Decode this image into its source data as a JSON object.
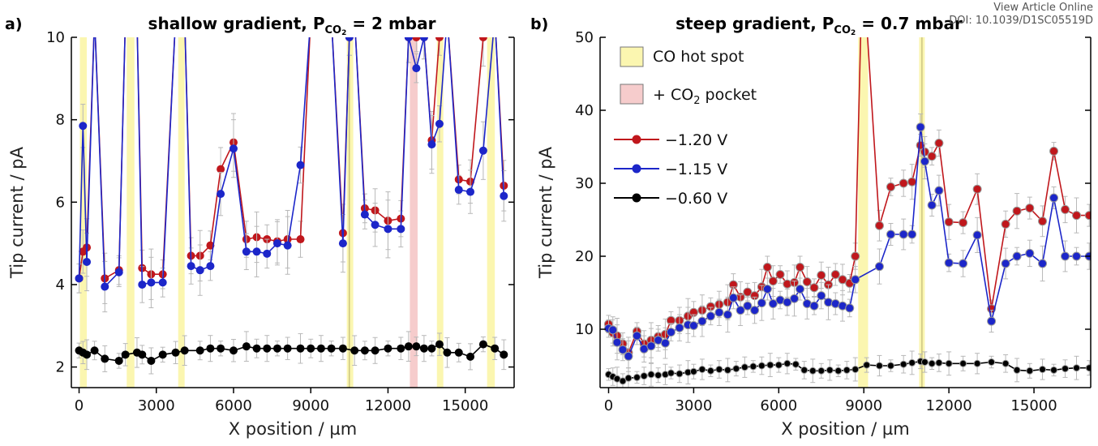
{
  "watermark": {
    "line1": "View Article Online",
    "line2": "DOI: 10.1039/D1SC05519D"
  },
  "chart_data": [
    {
      "type": "line",
      "panel": "a)",
      "title": "shallow gradient, P",
      "title_sub": "CO",
      "title_subsub": "2",
      "title_tail": " = 2 mbar",
      "xlabel": "X position / µm",
      "ylabel": "Tip current / pA",
      "xlim": [
        -300,
        16900
      ],
      "ylim": [
        1.5,
        10
      ],
      "xticks": [
        0,
        3000,
        6000,
        9000,
        12000,
        15000
      ],
      "yticks": [
        2,
        4,
        6,
        8,
        10
      ],
      "colors": {
        "-1.20 V": "#c0171c",
        "-1.15 V": "#1c26c9",
        "-0.60 V": "#000000",
        "hotspot": "#fbf6b0",
        "pocket": "#f6cccc"
      },
      "hotspots": [
        [
          30,
          300
        ],
        [
          1850,
          2150
        ],
        [
          3850,
          4100
        ],
        [
          10400,
          10650
        ],
        [
          13900,
          14150
        ],
        [
          15850,
          16150
        ]
      ],
      "pockets": [
        [
          12850,
          13150
        ]
      ],
      "hotspot_lines": [
        10500
      ],
      "series": [
        {
          "name": "-1.20 V",
          "x": [
            0,
            150,
            300,
            600,
            1000,
            1550,
            1800,
            2250,
            2450,
            2800,
            3250,
            3750,
            4100,
            4350,
            4700,
            5100,
            5500,
            6000,
            6500,
            6900,
            7300,
            7700,
            8100,
            8600,
            9000,
            9400,
            9800,
            10250,
            10500,
            10700,
            11100,
            11500,
            12000,
            12500,
            12800,
            13100,
            13400,
            13700,
            14000,
            14300,
            14750,
            15200,
            15700,
            16150,
            16500
          ],
          "y": [
            4.15,
            4.8,
            4.9,
            10.5,
            4.15,
            4.35,
            10.5,
            10.5,
            4.4,
            4.25,
            4.25,
            10.5,
            10.5,
            4.7,
            4.7,
            4.95,
            6.8,
            7.45,
            5.1,
            5.15,
            5.1,
            5.05,
            5.1,
            5.1,
            10.5,
            10.5,
            10.5,
            5.25,
            10.0,
            10.5,
            5.85,
            5.8,
            5.55,
            5.6,
            10.0,
            10.0,
            10.0,
            7.5,
            10.0,
            10.5,
            6.55,
            6.5,
            10.0,
            10.5,
            6.4
          ]
        },
        {
          "name": "-1.15 V",
          "x": [
            0,
            150,
            300,
            600,
            1000,
            1550,
            1800,
            2250,
            2450,
            2800,
            3250,
            3750,
            4100,
            4350,
            4700,
            5100,
            5500,
            6000,
            6500,
            6900,
            7300,
            7700,
            8100,
            8600,
            9000,
            9400,
            9800,
            10250,
            10500,
            10700,
            11100,
            11500,
            12000,
            12500,
            12800,
            13100,
            13400,
            13700,
            14000,
            14300,
            14750,
            15200,
            15700,
            16150,
            16500
          ],
          "y": [
            4.15,
            7.85,
            4.55,
            10.5,
            3.95,
            4.3,
            10.5,
            10.5,
            4.0,
            4.05,
            4.05,
            10.5,
            10.5,
            4.45,
            4.35,
            4.45,
            6.2,
            7.3,
            4.8,
            4.8,
            4.75,
            5.0,
            4.95,
            6.9,
            10.5,
            10.5,
            10.5,
            5.0,
            10.0,
            10.5,
            5.7,
            5.45,
            5.35,
            5.35,
            10.0,
            9.25,
            10.0,
            7.4,
            7.9,
            10.5,
            6.3,
            6.25,
            7.25,
            10.5,
            6.15
          ]
        },
        {
          "name": "-0.60 V",
          "x": [
            0,
            150,
            300,
            600,
            1000,
            1550,
            1800,
            2250,
            2450,
            2800,
            3250,
            3750,
            4100,
            4700,
            5100,
            5500,
            6000,
            6500,
            6900,
            7300,
            7700,
            8100,
            8600,
            9000,
            9400,
            9800,
            10250,
            10700,
            11100,
            11500,
            12000,
            12500,
            12800,
            13100,
            13400,
            13700,
            14000,
            14300,
            14750,
            15200,
            15700,
            16150,
            16500
          ],
          "y": [
            2.4,
            2.35,
            2.3,
            2.4,
            2.2,
            2.15,
            2.3,
            2.35,
            2.3,
            2.15,
            2.3,
            2.35,
            2.4,
            2.4,
            2.45,
            2.45,
            2.4,
            2.5,
            2.45,
            2.45,
            2.45,
            2.45,
            2.45,
            2.45,
            2.45,
            2.45,
            2.45,
            2.4,
            2.4,
            2.4,
            2.45,
            2.45,
            2.5,
            2.5,
            2.45,
            2.45,
            2.55,
            2.35,
            2.35,
            2.25,
            2.55,
            2.45,
            2.3
          ]
        }
      ]
    },
    {
      "type": "line",
      "panel": "b)",
      "title": "steep gradient, P",
      "title_sub": "CO",
      "title_subsub": "2",
      "title_tail": " = 0.7 mbar",
      "xlabel": "X position / µm",
      "ylabel": "Tip current / pA",
      "xlim": [
        -300,
        17000
      ],
      "ylim": [
        2,
        50
      ],
      "xticks": [
        0,
        3000,
        6000,
        9000,
        12000,
        15000
      ],
      "yticks": [
        10,
        20,
        30,
        40,
        50
      ],
      "legend": {
        "position": "top-left",
        "hotspot": "CO hot spot",
        "pocket_prefix": "+ CO",
        "pocket_sub": "2",
        "pocket_suffix": " pocket",
        "s1": "−1.20 V",
        "s2": "−1.15 V",
        "s3": "−0.60 V"
      },
      "hotspots": [
        [
          8800,
          9150
        ],
        [
          10950,
          11150
        ]
      ],
      "hotspot_lines": [
        11050
      ],
      "series": [
        {
          "name": "-1.20 V",
          "x": [
            0,
            150,
            300,
            500,
            700,
            1000,
            1250,
            1500,
            1750,
            2000,
            2200,
            2500,
            2800,
            3000,
            3300,
            3600,
            3900,
            4200,
            4400,
            4650,
            4900,
            5150,
            5400,
            5600,
            5800,
            6050,
            6300,
            6550,
            6750,
            7000,
            7250,
            7500,
            7750,
            8000,
            8250,
            8500,
            8700,
            8900,
            9100,
            9550,
            9950,
            10400,
            10700,
            11000,
            11150,
            11400,
            11650,
            12000,
            12500,
            13000,
            13500,
            14000,
            14400,
            14850,
            15300,
            15700,
            16100,
            16500,
            16950
          ],
          "y": [
            10.7,
            9.5,
            9.1,
            8.0,
            6.8,
            9.7,
            8.0,
            8.5,
            9.0,
            9.3,
            11.2,
            11.2,
            11.8,
            12.3,
            12.6,
            13.1,
            13.4,
            13.7,
            16.1,
            14.4,
            15.1,
            14.6,
            15.8,
            18.5,
            16.6,
            17.5,
            16.2,
            16.4,
            18.5,
            16.5,
            15.7,
            17.4,
            16.1,
            17.5,
            16.8,
            16.3,
            20,
            52,
            52,
            24.2,
            29.5,
            30,
            30.2,
            35.2,
            34.3,
            33.7,
            35.5,
            24.7,
            24.6,
            29.2,
            12.8,
            24.4,
            26.2,
            26.6,
            24.8,
            34.4,
            26.4,
            25.6,
            25.6
          ]
        },
        {
          "name": "-1.15 V",
          "x": [
            0,
            150,
            300,
            500,
            700,
            1000,
            1250,
            1500,
            1750,
            2000,
            2200,
            2500,
            2800,
            3000,
            3300,
            3600,
            3900,
            4200,
            4400,
            4650,
            4900,
            5150,
            5400,
            5600,
            5800,
            6050,
            6300,
            6550,
            6750,
            7000,
            7250,
            7500,
            7750,
            8000,
            8250,
            8500,
            8700,
            9550,
            9950,
            10400,
            10700,
            11000,
            11150,
            11400,
            11650,
            12000,
            12500,
            13000,
            13500,
            14000,
            14400,
            14850,
            15300,
            15700,
            16100,
            16500,
            16950
          ],
          "y": [
            10.1,
            9.9,
            8.2,
            7.2,
            6.3,
            9.1,
            7.3,
            7.7,
            8.5,
            8.1,
            9.6,
            10.2,
            10.6,
            10.5,
            11.1,
            11.8,
            12.3,
            12.0,
            14.3,
            12.6,
            13.2,
            12.6,
            13.6,
            15.5,
            13.5,
            14.0,
            13.7,
            14.2,
            15.5,
            13.5,
            13.2,
            14.6,
            13.7,
            13.5,
            13.2,
            12.9,
            16.8,
            18.6,
            23,
            23,
            23,
            37.7,
            33,
            27,
            29,
            19.1,
            19.0,
            22.9,
            11.1,
            19.0,
            20,
            20.4,
            19.0,
            28,
            20,
            20,
            20
          ]
        },
        {
          "name": "-0.60 V",
          "x": [
            0,
            150,
            300,
            500,
            700,
            1000,
            1250,
            1500,
            1750,
            2000,
            2200,
            2500,
            2800,
            3000,
            3300,
            3600,
            3900,
            4200,
            4500,
            4800,
            5100,
            5400,
            5700,
            6000,
            6300,
            6600,
            6900,
            7200,
            7500,
            7800,
            8100,
            8400,
            8700,
            9100,
            9550,
            9950,
            10400,
            10700,
            11000,
            11150,
            11400,
            11650,
            12000,
            12500,
            13000,
            13500,
            14000,
            14400,
            14850,
            15300,
            15700,
            16100,
            16500,
            16950
          ],
          "y": [
            3.8,
            3.5,
            3.2,
            2.9,
            3.3,
            3.4,
            3.6,
            3.8,
            3.7,
            3.8,
            4.0,
            3.9,
            4.1,
            4.2,
            4.5,
            4.3,
            4.5,
            4.4,
            4.6,
            4.8,
            4.9,
            5.0,
            5.1,
            5.1,
            5.3,
            5.2,
            4.4,
            4.3,
            4.3,
            4.4,
            4.3,
            4.4,
            4.5,
            5.1,
            5.0,
            5.0,
            5.2,
            5.4,
            5.6,
            5.5,
            5.3,
            5.4,
            5.3,
            5.3,
            5.3,
            5.5,
            5.3,
            4.4,
            4.3,
            4.5,
            4.4,
            4.6,
            4.7,
            4.7
          ]
        }
      ]
    }
  ]
}
